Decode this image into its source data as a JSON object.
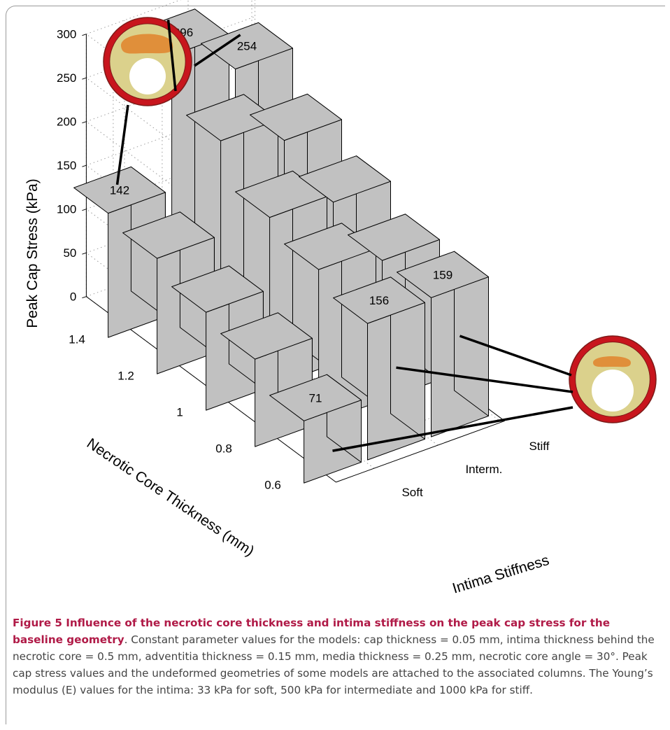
{
  "chart_data": {
    "type": "bar3d",
    "ylabel": "Peak Cap Stress (kPa)",
    "xlabel": "Necrotic Core Thickness (mm)",
    "zlabel": "Intima Stiffness",
    "yticks": [
      "0",
      "50",
      "100",
      "150",
      "200",
      "250",
      "300"
    ],
    "ylim": [
      0,
      300
    ],
    "thickness_categories": [
      "1.4",
      "1.2",
      "1",
      "0.8",
      "0.6"
    ],
    "stiffness_categories": [
      "Soft",
      "Interm.",
      "Stiff"
    ],
    "series": [
      {
        "name": "Soft",
        "values": [
          142,
          132,
          112,
          100,
          71
        ]
      },
      {
        "name": "Interm.",
        "values": [
          296,
          240,
          194,
          176,
          156
        ]
      },
      {
        "name": "Stiff",
        "values": [
          254,
          214,
          185,
          160,
          159
        ]
      }
    ],
    "data_labels": [
      {
        "stiffness": "Soft",
        "thickness": "1.4",
        "text": "142"
      },
      {
        "stiffness": "Interm.",
        "thickness": "1.4",
        "text": "296"
      },
      {
        "stiffness": "Stiff",
        "thickness": "1.4",
        "text": "254"
      },
      {
        "stiffness": "Interm.",
        "thickness": "0.6",
        "text": "156"
      },
      {
        "stiffness": "Stiff",
        "thickness": "0.6",
        "text": "159"
      },
      {
        "stiffness": "Soft",
        "thickness": "0.6",
        "text": "71"
      }
    ],
    "colors": {
      "bar": "#c1c1c1",
      "outline": "#000000",
      "adventitia": "#c8151d",
      "media": "#7d1a18",
      "intima": "#dbd18c",
      "core": "#e08f3a"
    },
    "grid": true
  },
  "caption": {
    "title": "Figure 5 Influence of the necrotic core thickness and intima stiffness on the peak cap stress for the baseline geometry",
    "text": ". Constant parameter values for the models: cap thickness = 0.05 mm, intima thickness behind the necrotic core = 0.5 mm, adventitia thickness = 0.15 mm, media thickness = 0.25 mm, necrotic core angle = 30°. Peak cap stress values and the undeformed geometries of some models are attached to the associated columns. The Young’s modulus (E) values for the intima: 33 kPa for soft, 500 kPa for intermediate and 1000 kPa for stiff."
  }
}
